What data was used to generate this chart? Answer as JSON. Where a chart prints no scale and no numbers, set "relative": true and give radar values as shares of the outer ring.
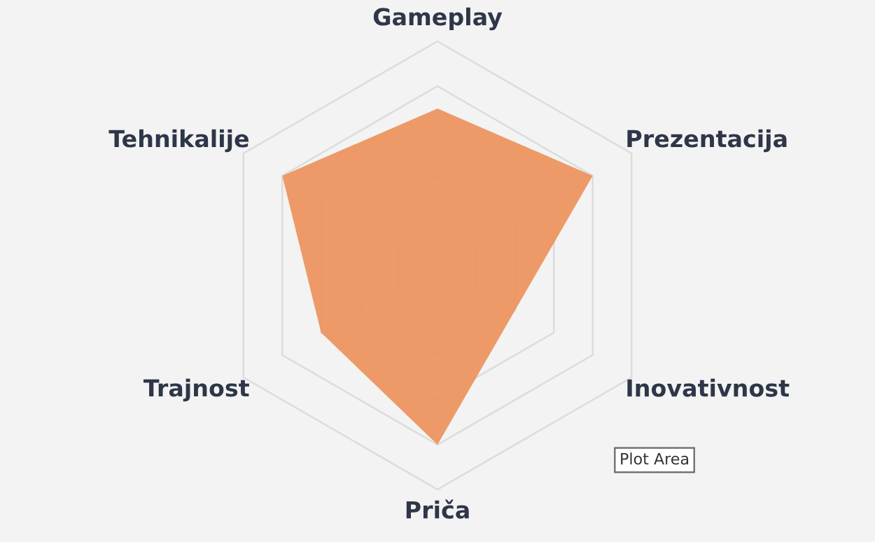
{
  "chart_data": {
    "type": "radar",
    "relative": true,
    "categories": [
      "Gameplay",
      "Prezentacija",
      "Inovativnost",
      "Priča",
      "Trajnost",
      "Tehnikalije"
    ],
    "series": [
      {
        "color": "#ec9059",
        "values": [
          0.7,
          0.8,
          0.4,
          0.8,
          0.6,
          0.8
        ]
      }
    ],
    "grid": true,
    "annotations": [
      "Plot Area"
    ]
  }
}
